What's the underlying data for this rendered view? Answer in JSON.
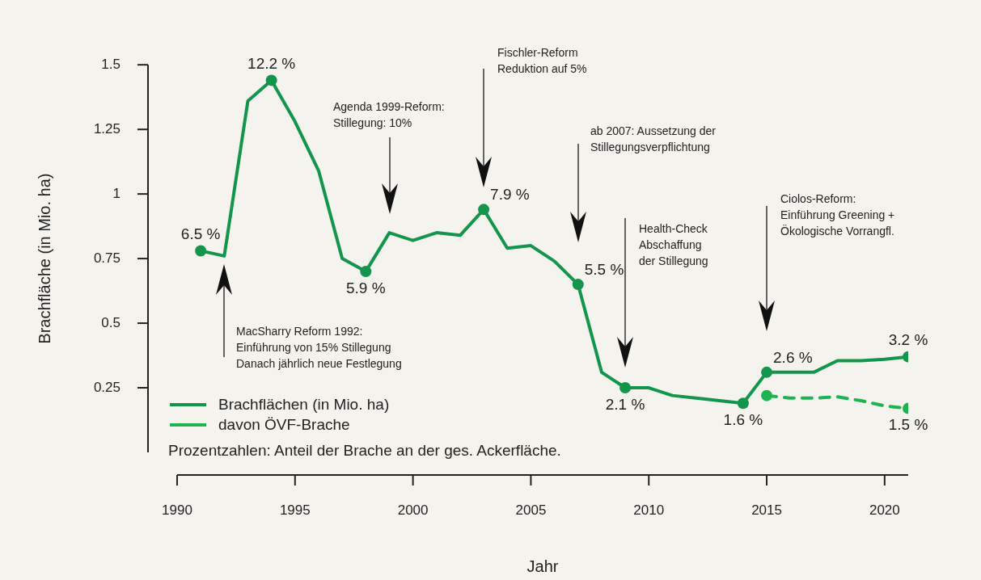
{
  "chart_data": {
    "type": "line",
    "xlabel": "Jahr",
    "ylabel": "Brachfläche (in Mio. ha)",
    "xlim": [
      1990,
      2021
    ],
    "xticks": [
      1990,
      1995,
      2000,
      2005,
      2010,
      2015,
      2020
    ],
    "ylim": [
      0,
      1.5
    ],
    "yticks": [
      0.25,
      0.5,
      0.75,
      1,
      1.25,
      1.5
    ],
    "grid": false,
    "legend": "bottom left",
    "series": [
      {
        "name": "Brachflächen (in Mio. ha)",
        "color": "#13954b",
        "marker": "none",
        "line_style": "solid",
        "x": [
          1991,
          1992,
          1993,
          1994,
          1995,
          1996,
          1997,
          1998,
          1999,
          2000,
          2001,
          2002,
          2003,
          2004,
          2005,
          2006,
          2007,
          2008,
          2009,
          2010,
          2011,
          2012,
          2013,
          2014,
          2015,
          2016,
          2017,
          2018,
          2019,
          2020,
          2021
        ],
        "values": [
          0.78,
          0.76,
          1.36,
          1.44,
          1.28,
          1.09,
          0.75,
          0.7,
          0.85,
          0.82,
          0.85,
          0.84,
          0.94,
          0.79,
          0.8,
          0.74,
          0.65,
          0.31,
          0.25,
          0.25,
          0.22,
          0.21,
          0.2,
          0.19,
          0.31,
          0.31,
          0.31,
          0.355,
          0.355,
          0.36,
          0.37
        ]
      },
      {
        "name": "davon ÖVF-Brache",
        "color": "#1fb451",
        "marker": "none",
        "line_style": "dashed",
        "x": [
          2015,
          2016,
          2017,
          2018,
          2019,
          2020,
          2021
        ],
        "values": [
          0.22,
          0.21,
          0.21,
          0.215,
          0.2,
          0.18,
          0.17
        ]
      },
      {
        "type": "scatter",
        "color": "#13954b",
        "marker": "circle",
        "x": [
          1991,
          1994,
          1998,
          2003,
          2007,
          2009,
          2014,
          2015,
          2021
        ],
        "values": [
          0.78,
          1.44,
          0.7,
          0.94,
          0.65,
          0.25,
          0.19,
          0.31,
          0.37
        ]
      },
      {
        "type": "scatter",
        "color": "#1fb451",
        "marker": "circle",
        "x": [
          2015,
          2021
        ],
        "values": [
          0.22,
          0.17
        ]
      }
    ],
    "annotations": [
      {
        "text": "6.5 %",
        "x": 1991,
        "y": 0.78
      },
      {
        "text": "12.2 %",
        "x": 1994,
        "y": 1.44
      },
      {
        "text": "5.9 %",
        "x": 1998,
        "y": 0.7
      },
      {
        "text": "7.9 %",
        "x": 2003,
        "y": 0.94
      },
      {
        "text": "5.5 %",
        "x": 2007,
        "y": 0.65
      },
      {
        "text": "2.1 %",
        "x": 2009,
        "y": 0.25
      },
      {
        "text": "1.6 %",
        "x": 2014,
        "y": 0.19
      },
      {
        "text": "2.6 %",
        "x": 2015,
        "y": 0.31
      },
      {
        "text": "3.2 %",
        "x": 2021,
        "y": 0.37
      },
      {
        "text": "1.5 %",
        "x": 2021,
        "y": 0.17
      },
      "MacSharry Reform 1992:\nEinführung von 15% Stillegung\nDanach jährlich neue Festlegung",
      "Agenda 1999-Reform:\nStillegung: 10%",
      "Fischler-Reform\nReduktion auf 5%",
      "ab 2007: Aussetzung der\nStillegungsverpflichtung",
      "Health-Check\nAbschaffung\nder Stillegung",
      "Ciolos-Reform:\nEinführung Greening +\nÖkologische Vorrangfl.",
      "Prozentzahlen: Anteil der Brache an der ges. Ackerfläche."
    ]
  }
}
